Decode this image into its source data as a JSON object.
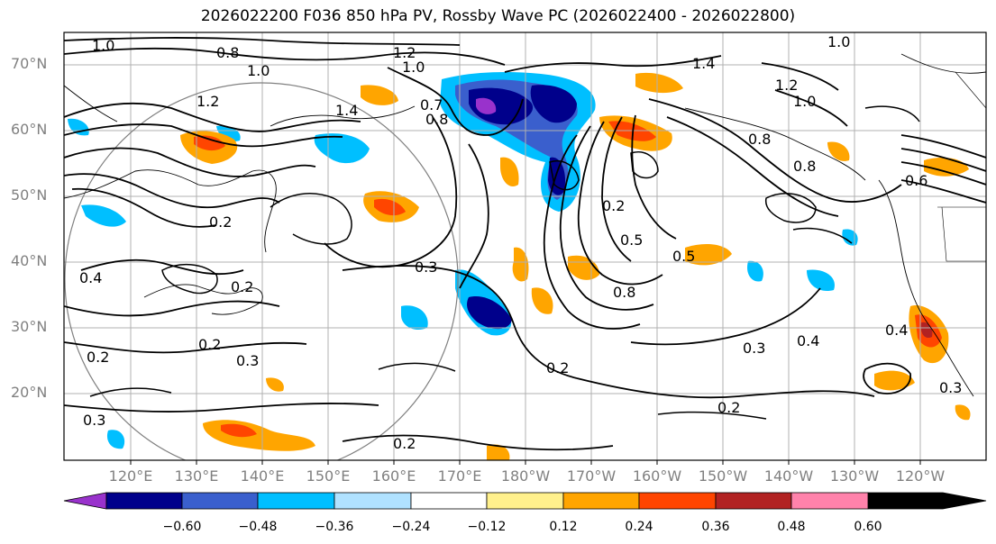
{
  "title": "2026022200 F036 850 hPa PV, Rossby Wave PC (2026022400 - 2026022800)",
  "lat_labels": [
    "70°N",
    "60°N",
    "50°N",
    "40°N",
    "30°N",
    "20°N"
  ],
  "lon_labels": [
    "120°E",
    "130°E",
    "140°E",
    "150°E",
    "160°E",
    "170°E",
    "180°W",
    "170°W",
    "160°W",
    "150°W",
    "140°W",
    "130°W",
    "120°W"
  ],
  "colorbar": {
    "tick_labels": [
      "−0.60",
      "−0.48",
      "−0.36",
      "−0.24",
      "−0.12",
      "0.12",
      "0.24",
      "0.36",
      "0.48",
      "0.60"
    ],
    "colors": [
      "#9932cc",
      "#00008b",
      "#3a5fcd",
      "#00bfff",
      "#b0e2ff",
      "#ffffff",
      "#fff08c",
      "#ffa500",
      "#ff4500",
      "#b22222",
      "#ff82ab"
    ]
  },
  "contour_labels": [
    "1.0",
    "0.8",
    "1.0",
    "1.2",
    "1.0",
    "1.2",
    "1.4",
    "0.7",
    "0.8",
    "1.4",
    "1.0",
    "1.2",
    "1.0",
    "0.8",
    "0.8",
    "0.6",
    "0.2",
    "0.2",
    "0.5",
    "0.5",
    "0.8",
    "0.3",
    "0.4",
    "0.2",
    "0.2",
    "0.3",
    "0.3",
    "0.4",
    "0.2",
    "0.2",
    "0.3",
    "0.2",
    "0.2",
    "0.4",
    "0.3"
  ]
}
